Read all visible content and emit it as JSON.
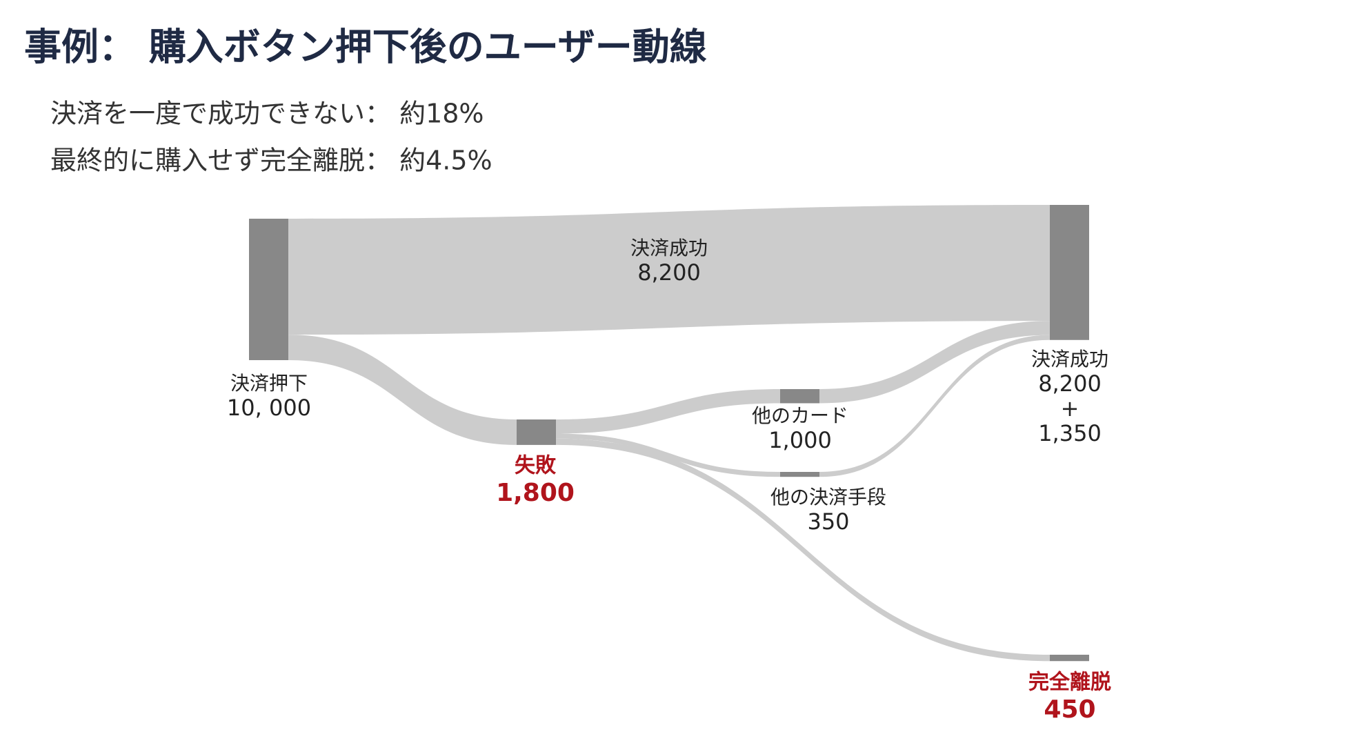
{
  "chart_data": {
    "type": "sankey",
    "title": "事例： 購入ボタン押下後のユーザー動線",
    "subtitles": [
      "決済を一度で成功できない： 約18%",
      "最終的に購入せず完全離脱： 約4.5%"
    ],
    "node_color": "#888888",
    "link_color": "#cccccc",
    "nodes": [
      {
        "name": "決済押下",
        "value": 10000,
        "value_label": "10, 000"
      },
      {
        "name": "失敗",
        "value": 1800,
        "value_label": "1,800",
        "label_color": "#b0141c"
      },
      {
        "name": "他のカード",
        "value": 1000,
        "value_label": "1,000"
      },
      {
        "name": "他の決済手段",
        "value": 350
      },
      {
        "name": "決済成功",
        "values": [
          8200,
          1350
        ],
        "value_labels": [
          "8,200",
          "1,350"
        ],
        "value_joiner": "+"
      },
      {
        "name": "完全離脱",
        "value": 450,
        "label_color": "#b0141c"
      }
    ],
    "links": [
      {
        "source": 0,
        "target": 4,
        "value": 8200,
        "name": "決済成功",
        "value_label": "8,200"
      },
      {
        "source": 0,
        "target": 1,
        "value": 1800
      },
      {
        "source": 1,
        "target": 2,
        "value": 1000
      },
      {
        "source": 1,
        "target": 3,
        "value": 350
      },
      {
        "source": 1,
        "target": 5,
        "value": 450
      },
      {
        "source": 2,
        "target": 4,
        "value": 1000
      },
      {
        "source": 3,
        "target": 4,
        "value": 350
      }
    ]
  }
}
